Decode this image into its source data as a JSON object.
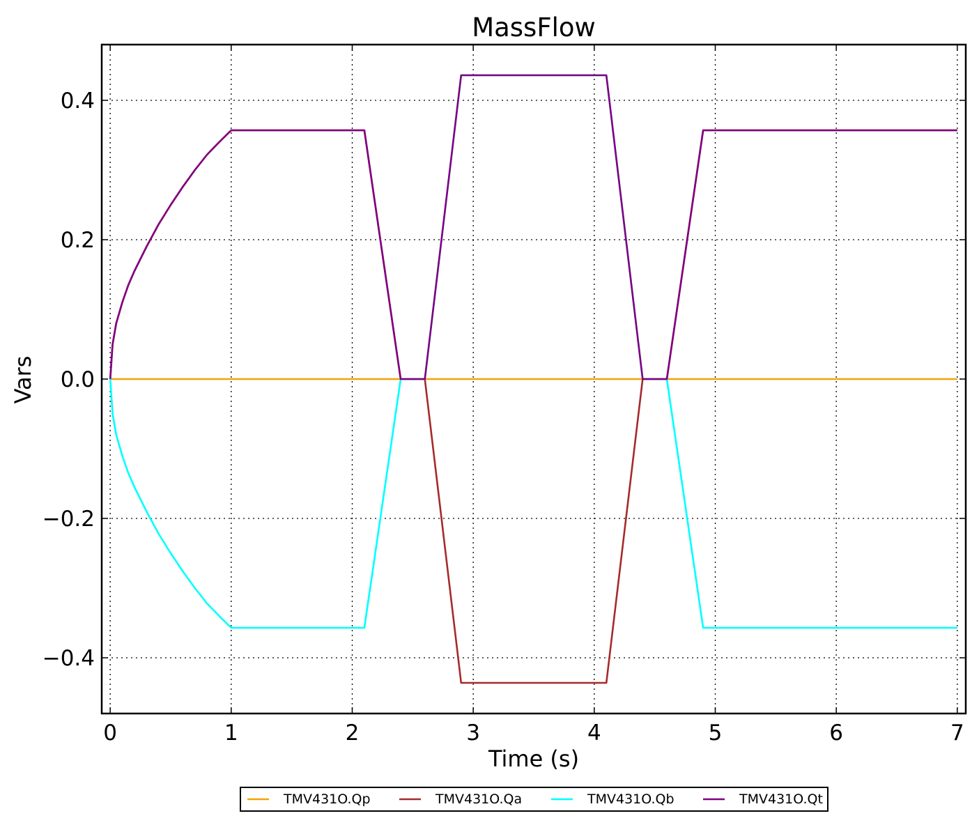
{
  "chart_data": {
    "type": "line",
    "title": "MassFlow",
    "xlabel": "Time (s)",
    "ylabel": "Vars",
    "xlim": [
      -0.07,
      7.07
    ],
    "ylim": [
      -0.48,
      0.48
    ],
    "xticks": [
      0,
      1,
      2,
      3,
      4,
      5,
      6,
      7
    ],
    "xtick_labels": [
      "0",
      "1",
      "2",
      "3",
      "4",
      "5",
      "6",
      "7"
    ],
    "yticks": [
      -0.4,
      -0.2,
      0.0,
      0.2,
      0.4
    ],
    "ytick_labels": [
      "−0.4",
      "−0.2",
      "0.0",
      "0.2",
      "0.4"
    ],
    "grid": true,
    "legend_position": "bottom-center",
    "series": [
      {
        "name": "TMV431O.Qp",
        "color": "#f5a20a",
        "x": [
          0,
          7
        ],
        "y": [
          0,
          0
        ]
      },
      {
        "name": "TMV431O.Qa",
        "color": "#a52a2a",
        "x": [
          0,
          0.02,
          0.05,
          0.1,
          0.15,
          0.2,
          0.3,
          0.4,
          0.5,
          0.6,
          0.7,
          0.8,
          0.9,
          1.0,
          2.1,
          2.4,
          2.6,
          2.9,
          4.1,
          4.4,
          4.6,
          4.9,
          7.0
        ],
        "y": [
          0,
          0.05,
          0.08,
          0.11,
          0.135,
          0.155,
          0.19,
          0.222,
          0.25,
          0.276,
          0.3,
          0.322,
          0.34,
          0.357,
          0.357,
          0,
          0,
          -0.436,
          -0.436,
          0,
          0,
          0.357,
          0.357
        ]
      },
      {
        "name": "TMV431O.Qb",
        "color": "#00ffff",
        "x": [
          0,
          0.02,
          0.05,
          0.1,
          0.15,
          0.2,
          0.3,
          0.4,
          0.5,
          0.6,
          0.7,
          0.8,
          0.9,
          1.0,
          2.1,
          2.4,
          2.6,
          2.9,
          4.1,
          4.4,
          4.6,
          4.9,
          7.0
        ],
        "y": [
          0,
          -0.05,
          -0.08,
          -0.11,
          -0.135,
          -0.155,
          -0.19,
          -0.222,
          -0.25,
          -0.276,
          -0.3,
          -0.322,
          -0.34,
          -0.357,
          -0.357,
          0,
          0,
          0.436,
          0.436,
          0,
          0,
          -0.357,
          -0.357
        ]
      },
      {
        "name": "TMV431O.Qt",
        "color": "#800080",
        "x": [
          0,
          0.02,
          0.05,
          0.1,
          0.15,
          0.2,
          0.3,
          0.4,
          0.5,
          0.6,
          0.7,
          0.8,
          0.9,
          1.0,
          2.1,
          2.4,
          2.6,
          2.9,
          4.1,
          4.4,
          4.6,
          4.9,
          7.0
        ],
        "y": [
          0,
          0.05,
          0.08,
          0.11,
          0.135,
          0.155,
          0.19,
          0.222,
          0.25,
          0.276,
          0.3,
          0.322,
          0.34,
          0.357,
          0.357,
          0,
          0,
          0.436,
          0.436,
          0,
          0,
          0.357,
          0.357
        ]
      }
    ]
  }
}
